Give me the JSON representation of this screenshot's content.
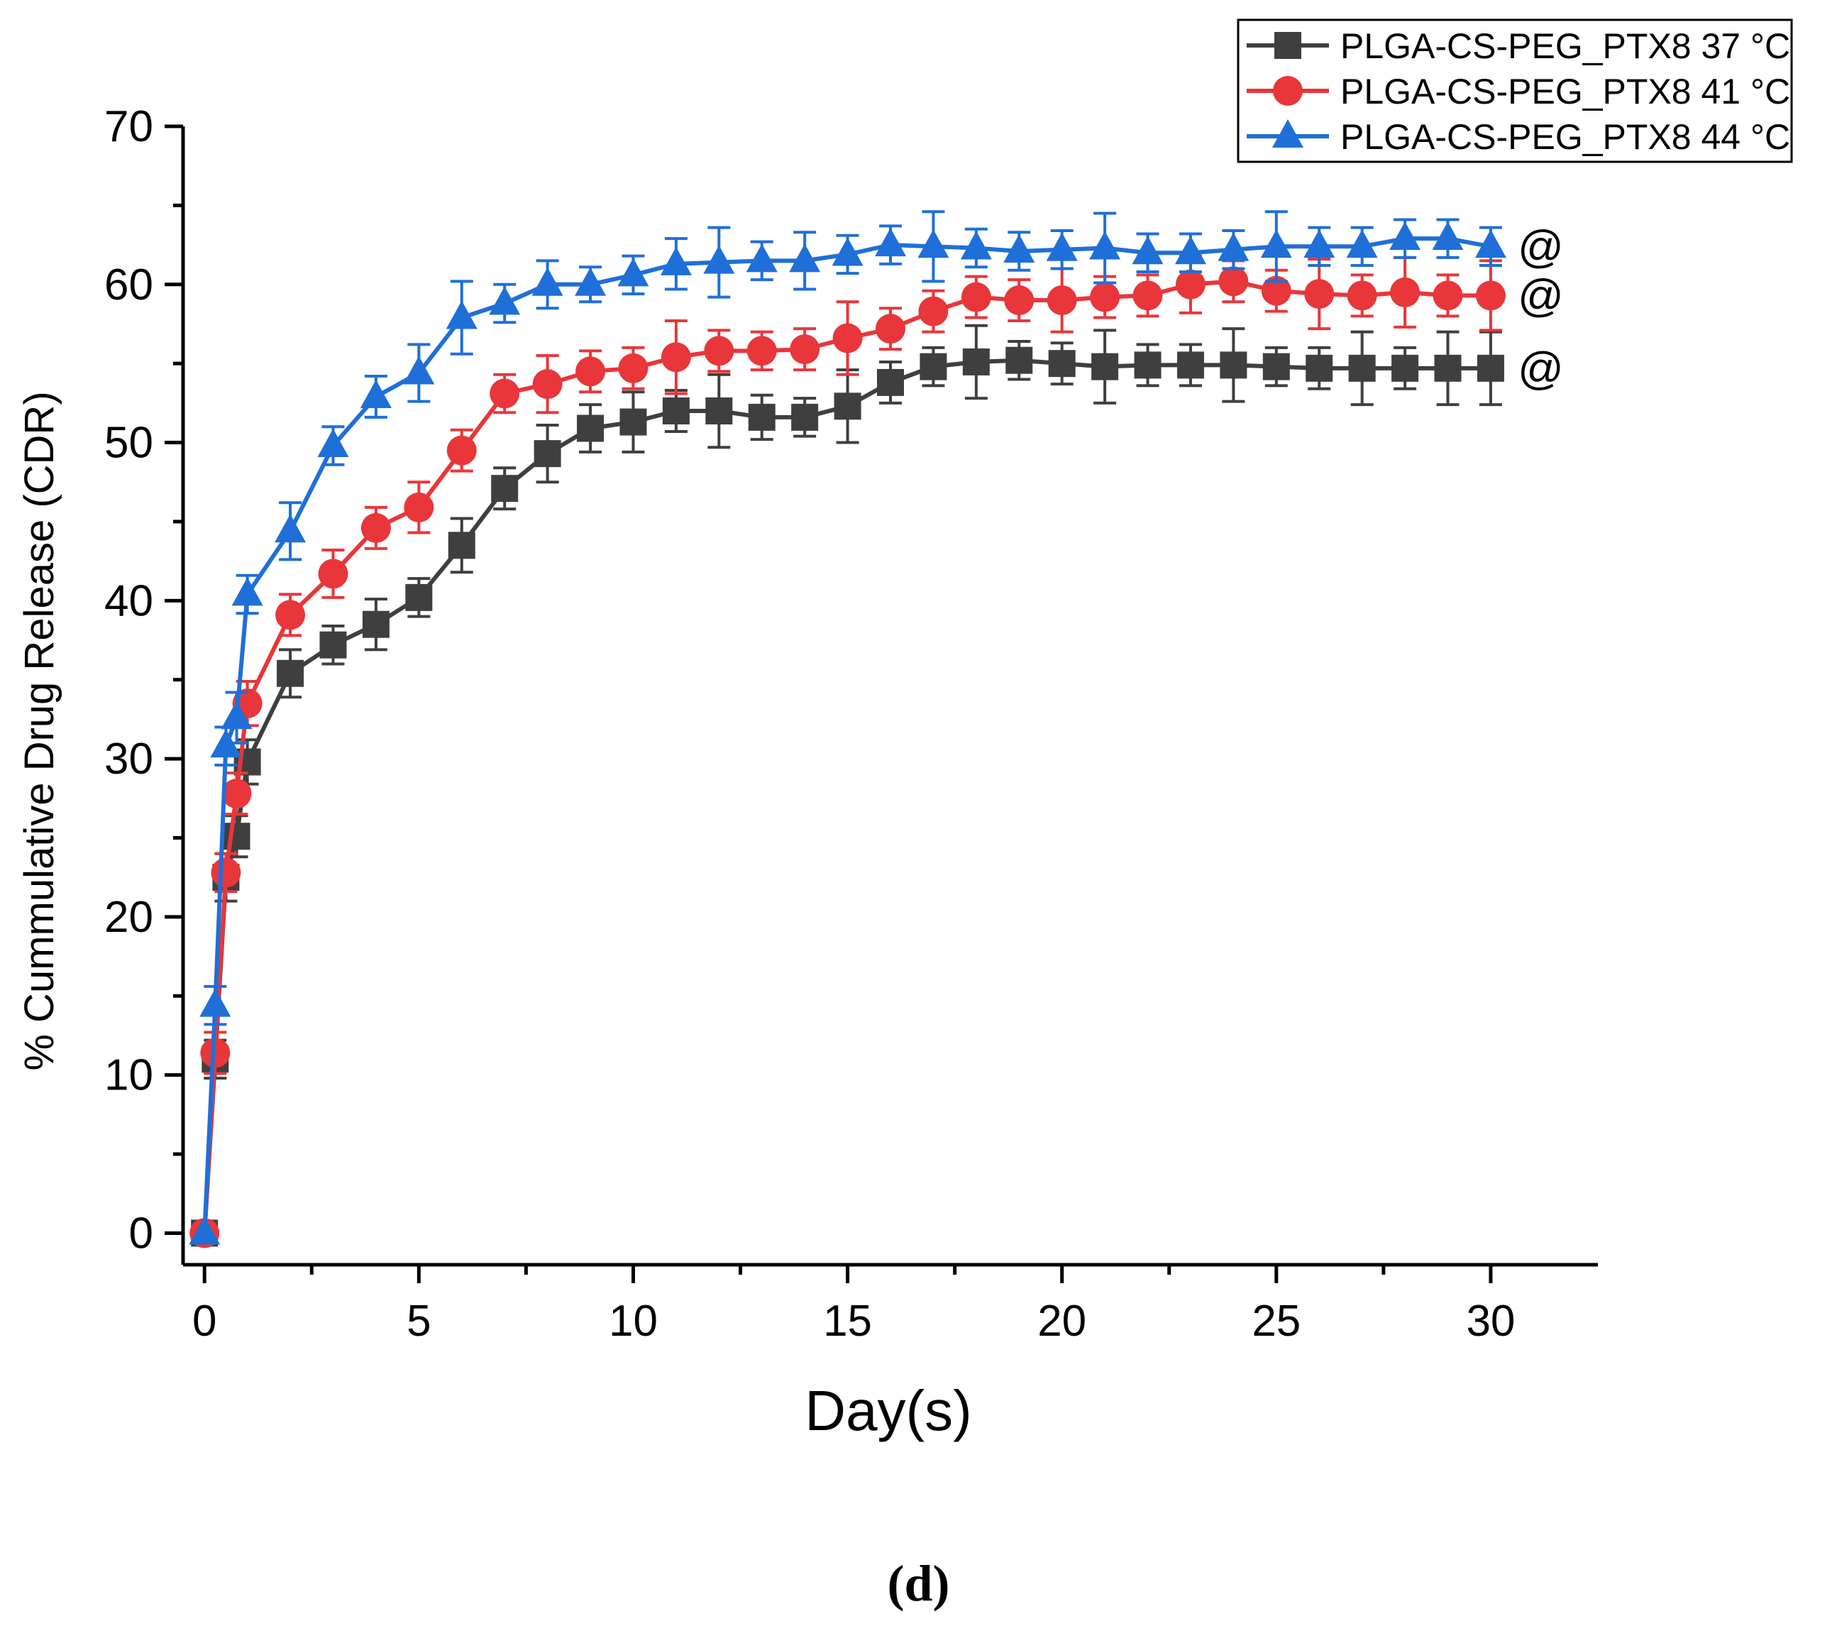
{
  "chart_data": {
    "type": "line",
    "title": "",
    "xlabel": "Day(s)",
    "ylabel": "% Cummulative Drug Release (CDR)",
    "xlim": [
      -0.5,
      32.5
    ],
    "ylim": [
      -2,
      70
    ],
    "xticks": [
      0,
      5,
      10,
      15,
      20,
      25,
      30
    ],
    "yticks": [
      0,
      10,
      20,
      30,
      40,
      50,
      60,
      70
    ],
    "grid": false,
    "legend_position": "top-right",
    "panel_label": "(d)",
    "x": [
      0,
      0.25,
      0.5,
      0.75,
      1,
      2,
      3,
      4,
      5,
      6,
      7,
      8,
      9,
      10,
      11,
      12,
      13,
      14,
      15,
      16,
      17,
      18,
      19,
      20,
      21,
      22,
      23,
      24,
      25,
      26,
      27,
      28,
      29,
      30
    ],
    "series": [
      {
        "name": "PLGA-CS-PEG_PTX8 37 °C",
        "color": "#3f3f3f",
        "marker": "square",
        "values": [
          0,
          11.0,
          22.5,
          25.1,
          29.8,
          35.4,
          37.2,
          38.5,
          40.2,
          43.5,
          47.1,
          49.3,
          50.9,
          51.3,
          52.0,
          52.0,
          51.6,
          51.6,
          52.3,
          53.8,
          54.8,
          55.1,
          55.2,
          55.0,
          54.8,
          54.9,
          54.9,
          54.9,
          54.8,
          54.7,
          54.7,
          54.7,
          54.7,
          54.7
        ],
        "errors": [
          0,
          1.2,
          1.5,
          1.3,
          1.4,
          1.5,
          1.2,
          1.6,
          1.2,
          1.7,
          1.3,
          1.8,
          1.5,
          1.9,
          1.3,
          2.3,
          1.4,
          1.2,
          2.3,
          1.3,
          1.2,
          2.3,
          1.2,
          1.3,
          2.3,
          1.3,
          1.3,
          2.3,
          1.2,
          1.3,
          2.3,
          1.3,
          2.3,
          2.3
        ]
      },
      {
        "name": "PLGA-CS-PEG_PTX8 41 °C",
        "color": "#e8363a",
        "marker": "circle",
        "values": [
          0,
          11.4,
          22.8,
          27.8,
          33.5,
          39.1,
          41.7,
          44.6,
          45.9,
          49.5,
          53.1,
          53.7,
          54.5,
          54.7,
          55.4,
          55.8,
          55.8,
          55.9,
          56.6,
          57.2,
          58.3,
          59.2,
          59.0,
          59.0,
          59.2,
          59.3,
          60.0,
          60.2,
          59.6,
          59.4,
          59.3,
          59.5,
          59.3,
          59.3
        ],
        "errors": [
          0,
          1.3,
          1.2,
          1.3,
          1.4,
          1.3,
          1.5,
          1.3,
          1.6,
          1.3,
          1.2,
          1.8,
          1.3,
          1.3,
          2.3,
          1.3,
          1.2,
          1.3,
          2.3,
          1.3,
          1.3,
          1.3,
          1.3,
          2.0,
          1.3,
          1.3,
          1.8,
          1.3,
          1.3,
          2.2,
          1.3,
          2.2,
          1.3,
          2.2
        ]
      },
      {
        "name": "PLGA-CS-PEG_PTX8 44 °C",
        "color": "#1f6fd8",
        "marker": "triangle",
        "values": [
          0,
          14.4,
          30.8,
          32.6,
          40.4,
          44.4,
          49.8,
          52.9,
          54.4,
          57.9,
          58.8,
          60.0,
          60.0,
          60.6,
          61.3,
          61.4,
          61.5,
          61.5,
          61.9,
          62.5,
          62.4,
          62.3,
          62.1,
          62.2,
          62.3,
          62.0,
          62.0,
          62.2,
          62.4,
          62.4,
          62.4,
          62.9,
          62.9,
          62.4
        ],
        "errors": [
          0,
          1.2,
          1.2,
          1.6,
          1.2,
          1.8,
          1.2,
          1.3,
          1.8,
          2.3,
          1.2,
          1.5,
          1.1,
          1.2,
          1.6,
          2.2,
          1.2,
          1.8,
          1.2,
          1.2,
          2.2,
          1.2,
          1.2,
          1.2,
          2.2,
          1.2,
          1.2,
          1.2,
          2.2,
          1.2,
          1.2,
          1.2,
          1.2,
          1.2
        ]
      }
    ],
    "annotations": [
      {
        "text": "@",
        "series": 2
      },
      {
        "text": "@",
        "series": 1
      },
      {
        "text": "@",
        "series": 0
      }
    ]
  }
}
